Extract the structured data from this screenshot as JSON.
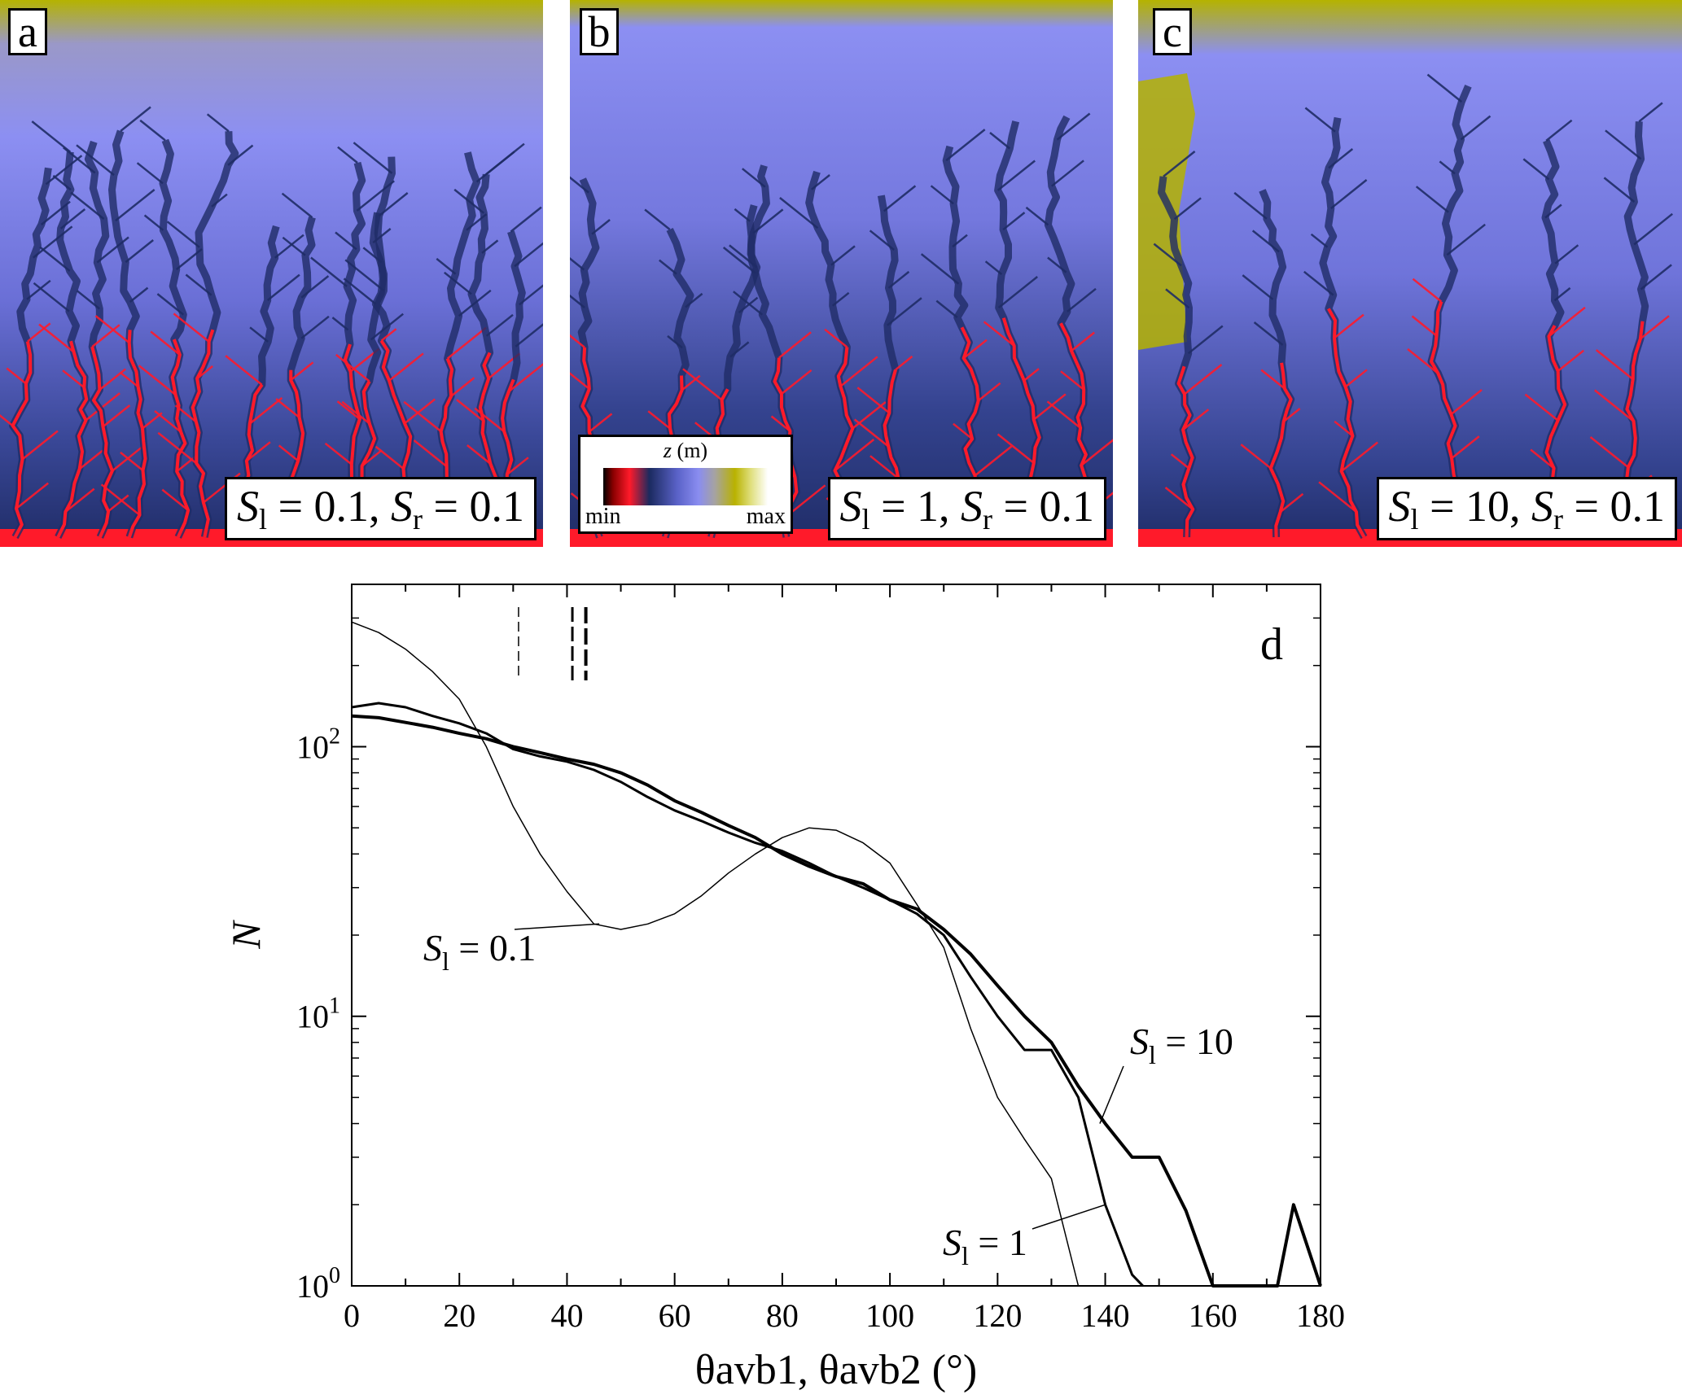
{
  "panels": [
    {
      "letter": "a",
      "param_text": "0.1",
      "sr_text": "0.1"
    },
    {
      "letter": "b",
      "param_text": "1",
      "sr_text": "0.1"
    },
    {
      "letter": "c",
      "param_text": "10",
      "sr_text": "0.1"
    }
  ],
  "panel_palette": {
    "high": "#b5b300",
    "mid": "#8c8ff2",
    "low": "#1f2c66",
    "channel": "#ff1a2a"
  },
  "colorbar": {
    "title_var": "z",
    "title_unit": "(m)",
    "min_label": "min",
    "max_label": "max"
  },
  "chart_data": {
    "type": "line",
    "panel_label": "d",
    "xlabel": "θavb1, θavb2 (°)",
    "ylabel": "N",
    "xlim": [
      0,
      180
    ],
    "ylim": [
      1,
      400
    ],
    "yscale": "log",
    "x_ticks": [
      0,
      20,
      40,
      60,
      80,
      100,
      120,
      140,
      160,
      180
    ],
    "y_ticks": [
      {
        "value": 1,
        "base": "10",
        "exp": "0"
      },
      {
        "value": 10,
        "base": "10",
        "exp": "1"
      },
      {
        "value": 100,
        "base": "10",
        "exp": "2"
      }
    ],
    "series": [
      {
        "name": "S_l = 0.1",
        "label_main": "S",
        "label_sub": "l",
        "label_val": " = 0.1",
        "stroke": 1.5,
        "x": [
          0,
          5,
          10,
          15,
          20,
          25,
          30,
          35,
          40,
          45,
          50,
          55,
          60,
          65,
          70,
          75,
          80,
          85,
          90,
          95,
          100,
          105,
          110,
          115,
          120,
          125,
          130,
          135
        ],
        "y": [
          290,
          265,
          230,
          190,
          150,
          100,
          60,
          40,
          29,
          22,
          21,
          22,
          24,
          28,
          34,
          40,
          46,
          50,
          49,
          44,
          37,
          26,
          18,
          9,
          5,
          3.5,
          2.5,
          1
        ]
      },
      {
        "name": "S_l = 1",
        "label_main": "S",
        "label_sub": "l",
        "label_val": " = 1",
        "stroke": 3,
        "x": [
          0,
          5,
          10,
          15,
          20,
          25,
          30,
          35,
          40,
          45,
          50,
          55,
          60,
          65,
          70,
          75,
          80,
          85,
          90,
          95,
          100,
          105,
          110,
          115,
          120,
          125,
          130,
          135,
          140,
          145,
          147
        ],
        "y": [
          140,
          145,
          140,
          130,
          122,
          112,
          98,
          92,
          88,
          82,
          74,
          65,
          58,
          53,
          48,
          44,
          41,
          37,
          33,
          30,
          27,
          24,
          20,
          14,
          10,
          7.5,
          7.5,
          5,
          2,
          1.1,
          1
        ]
      },
      {
        "name": "S_l = 10",
        "label_main": "S",
        "label_sub": "l",
        "label_val": " = 10",
        "stroke": 4,
        "x": [
          0,
          5,
          10,
          15,
          20,
          25,
          30,
          35,
          40,
          45,
          50,
          55,
          60,
          65,
          70,
          75,
          80,
          85,
          90,
          95,
          100,
          105,
          110,
          115,
          120,
          125,
          130,
          135,
          140,
          145,
          150,
          155,
          160,
          165,
          170,
          172,
          175,
          180
        ],
        "y": [
          130,
          128,
          123,
          118,
          112,
          107,
          100,
          95,
          90,
          86,
          80,
          72,
          63,
          57,
          51,
          46,
          40,
          36,
          33,
          31,
          27,
          25,
          21,
          17,
          13,
          10,
          8,
          5.5,
          4,
          3,
          3,
          1.9,
          1,
          1,
          1,
          1,
          2,
          1
        ]
      }
    ],
    "markers": [
      {
        "x": 31,
        "dash": "12,6",
        "stroke": 1.5
      },
      {
        "x": 41,
        "dash": "18,6",
        "stroke": 3
      },
      {
        "x": 43.5,
        "dash": "20,6",
        "stroke": 4
      }
    ]
  }
}
